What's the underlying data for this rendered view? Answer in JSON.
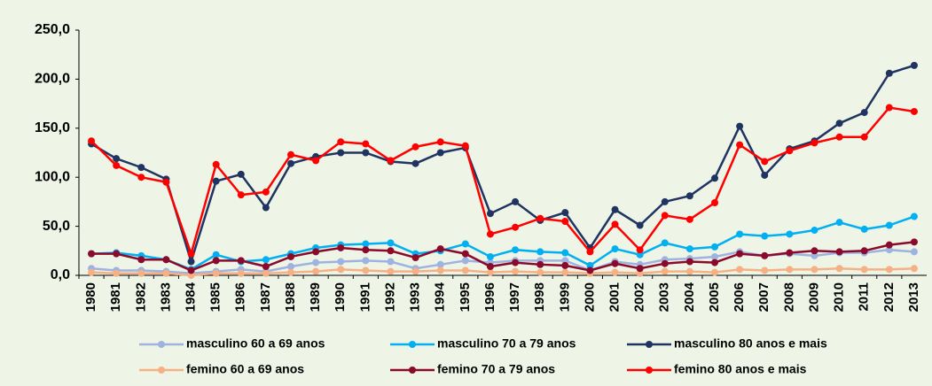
{
  "chart_data": {
    "type": "line",
    "categories": [
      "1980",
      "1981",
      "1982",
      "1983",
      "1984",
      "1985",
      "1986",
      "1987",
      "1988",
      "1989",
      "1990",
      "1991",
      "1992",
      "1993",
      "1994",
      "1995",
      "1996",
      "1997",
      "1998",
      "1999",
      "2000",
      "2001",
      "2002",
      "2003",
      "2004",
      "2005",
      "2006",
      "2007",
      "2008",
      "2009",
      "2010",
      "2011",
      "2012",
      "2013"
    ],
    "series": [
      {
        "name": "masculino 60 a 69 anos",
        "color": "#9fb3e0",
        "values": [
          7,
          5,
          5,
          4,
          2,
          4,
          6,
          4,
          9,
          13,
          14,
          15,
          14,
          7,
          11,
          15,
          13,
          15,
          15,
          15,
          5,
          14,
          11,
          16,
          17,
          19,
          24,
          20,
          22,
          20,
          23,
          23,
          26,
          24
        ]
      },
      {
        "name": "masculino 70 a 79 anos",
        "color": "#00b0f0",
        "values": [
          22,
          23,
          20,
          16,
          6,
          21,
          14,
          16,
          22,
          28,
          31,
          32,
          33,
          22,
          25,
          32,
          19,
          26,
          24,
          23,
          10,
          27,
          21,
          33,
          27,
          29,
          42,
          40,
          42,
          46,
          54,
          47,
          51,
          60
        ]
      },
      {
        "name": "masculino 80 anos e mais",
        "color": "#1f3461",
        "values": [
          134,
          119,
          110,
          98,
          14,
          96,
          103,
          69,
          114,
          121,
          125,
          125,
          116,
          114,
          125,
          130,
          63,
          75,
          56,
          64,
          28,
          67,
          51,
          75,
          81,
          99,
          152,
          102,
          129,
          137,
          155,
          166,
          206,
          214
        ]
      },
      {
        "name": "femino 60 a 69 anos",
        "color": "#f5b183",
        "values": [
          3,
          2,
          2,
          2,
          0,
          2,
          2,
          2,
          3,
          4,
          6,
          5,
          4,
          4,
          5,
          5,
          3,
          4,
          3,
          3,
          2,
          3,
          2,
          4,
          4,
          3,
          6,
          5,
          6,
          6,
          7,
          6,
          6,
          7
        ]
      },
      {
        "name": "femino 70 a 79 anos",
        "color": "#8b0a2c",
        "values": [
          22,
          22,
          16,
          16,
          5,
          15,
          15,
          9,
          19,
          24,
          28,
          26,
          25,
          18,
          27,
          22,
          9,
          13,
          11,
          10,
          5,
          12,
          7,
          12,
          14,
          13,
          22,
          20,
          23,
          25,
          24,
          25,
          31,
          34
        ]
      },
      {
        "name": "femino 80 anos e mais",
        "color": "#ff0000",
        "values": [
          137,
          112,
          100,
          95,
          22,
          113,
          82,
          85,
          123,
          117,
          136,
          134,
          117,
          131,
          136,
          132,
          42,
          49,
          58,
          55,
          24,
          52,
          26,
          61,
          57,
          74,
          133,
          116,
          127,
          135,
          141,
          141,
          171,
          167
        ]
      }
    ],
    "ylim": [
      0,
      250
    ],
    "yticks": [
      {
        "value": 0,
        "label": "0,0"
      },
      {
        "value": 50,
        "label": "50,0"
      },
      {
        "value": 100,
        "label": "100,0"
      },
      {
        "value": 150,
        "label": "150,0"
      },
      {
        "value": 200,
        "label": "200,0"
      },
      {
        "value": 250,
        "label": "250,0"
      }
    ],
    "grid": false,
    "legend": "bottom"
  }
}
